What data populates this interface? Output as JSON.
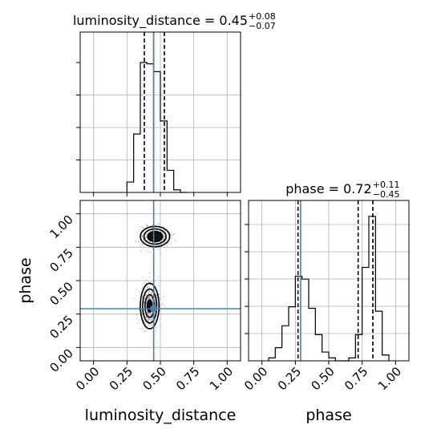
{
  "chart_data": {
    "type": "corner",
    "parameters": [
      "luminosity_distance",
      "phase"
    ],
    "titles": [
      {
        "name": "luminosity_distance",
        "value": "0.45",
        "plus": "+0.08",
        "minus": "−0.07"
      },
      {
        "name": "phase",
        "value": "0.72",
        "plus": "+0.11",
        "minus": "−0.45"
      }
    ],
    "truths": {
      "luminosity_distance": 0.45,
      "phase": 0.29
    },
    "quantiles": {
      "luminosity_distance": [
        0.38,
        0.45,
        0.53
      ],
      "phase": [
        0.27,
        0.72,
        0.83
      ]
    },
    "ranges": {
      "luminosity_distance": [
        -0.1,
        1.1
      ],
      "phase": [
        -0.1,
        1.1
      ]
    },
    "ticks": {
      "luminosity_distance": [
        "0.00",
        "0.25",
        "0.50",
        "0.75",
        "1.00"
      ],
      "phase": [
        "0.00",
        "0.25",
        "0.50",
        "0.75",
        "1.00"
      ]
    },
    "hist_luminosity_distance": {
      "bin_edges": [
        0.25,
        0.3,
        0.35,
        0.4,
        0.45,
        0.5,
        0.55,
        0.6,
        0.65,
        0.7
      ],
      "counts": [
        0.08,
        0.45,
        1.0,
        0.99,
        0.93,
        0.55,
        0.17,
        0.02,
        0.0
      ]
    },
    "hist_phase": {
      "bin_edges": [
        0.05,
        0.1,
        0.15,
        0.2,
        0.25,
        0.3,
        0.35,
        0.4,
        0.45,
        0.5,
        0.55,
        0.6,
        0.65,
        0.7,
        0.75,
        0.8,
        0.85,
        0.9,
        0.95
      ],
      "counts": [
        0.02,
        0.09,
        0.24,
        0.37,
        0.58,
        0.56,
        0.36,
        0.18,
        0.06,
        0.02,
        0.0,
        0.0,
        0.02,
        0.18,
        0.64,
        0.99,
        0.34,
        0.04
      ]
    },
    "scatter_2d": {
      "x": "luminosity_distance",
      "y": "phase",
      "clusters": [
        {
          "center": [
            0.46,
            0.83
          ],
          "spread": [
            0.055,
            0.038
          ],
          "weight": 0.45
        },
        {
          "center": [
            0.42,
            0.31
          ],
          "spread": [
            0.035,
            0.085
          ],
          "weight": 0.55
        }
      ]
    },
    "grid": true
  }
}
